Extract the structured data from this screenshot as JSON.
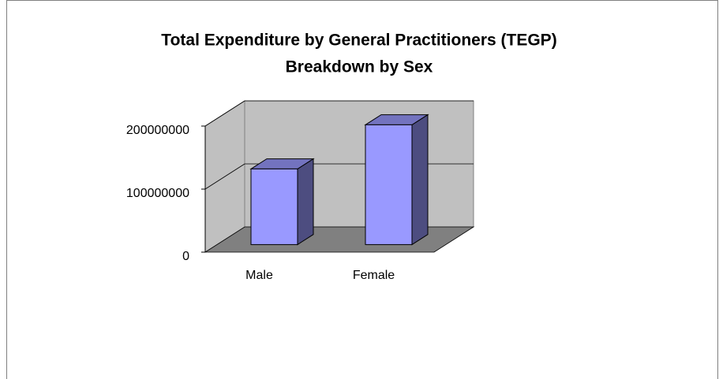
{
  "chart_data": {
    "type": "bar",
    "title": "Total Expenditure by General Practitioners (TEGP)",
    "subtitle": "Breakdown by Sex",
    "categories": [
      "Male",
      "Female"
    ],
    "values": [
      120000000,
      190000000
    ],
    "color": "#9999ff",
    "ylim": [
      0,
      200000000
    ],
    "yticks": [
      0,
      100000000,
      200000000
    ],
    "grid": true
  }
}
